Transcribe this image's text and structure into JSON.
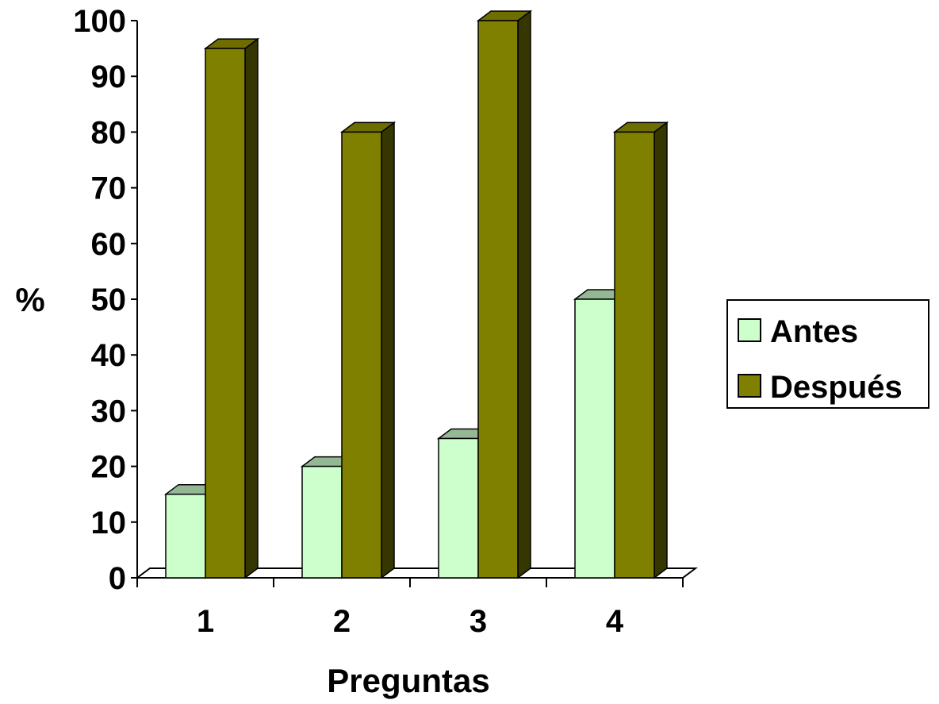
{
  "chart_data": {
    "type": "bar",
    "categories": [
      "1",
      "2",
      "3",
      "4"
    ],
    "series": [
      {
        "name": "Antes",
        "values": [
          15,
          20,
          25,
          50
        ],
        "color": "#CCFFCC"
      },
      {
        "name": "Después",
        "values": [
          95,
          80,
          100,
          80
        ],
        "color": "#808000"
      }
    ],
    "xlabel": "Preguntas",
    "ylabel": "%",
    "ylim": [
      0,
      100
    ],
    "yticks": [
      "0",
      "10",
      "20",
      "30",
      "40",
      "50",
      "60",
      "70",
      "80",
      "90",
      "100"
    ],
    "grid": false,
    "legend_position": "right",
    "style": "3d-clustered-column"
  }
}
